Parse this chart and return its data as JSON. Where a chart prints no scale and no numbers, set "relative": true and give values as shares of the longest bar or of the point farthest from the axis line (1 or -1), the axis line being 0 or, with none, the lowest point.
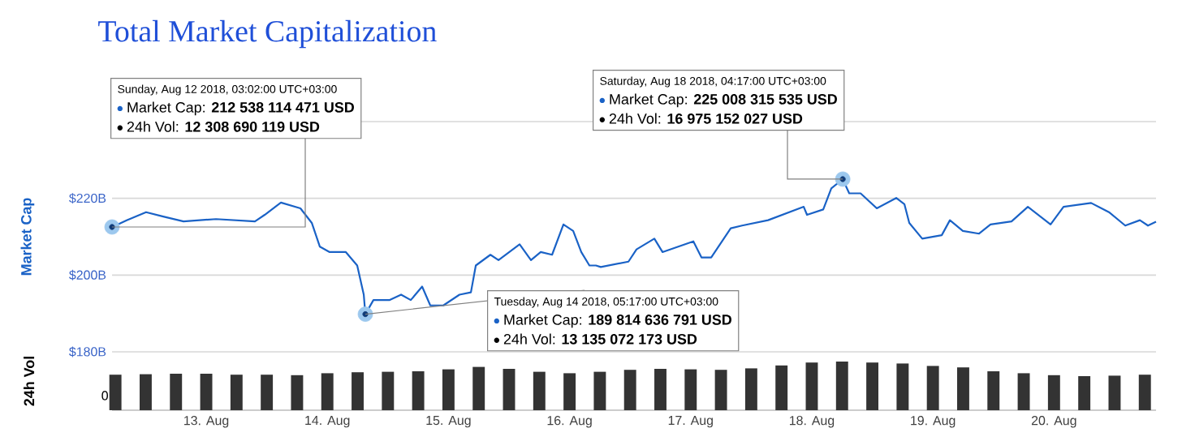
{
  "chart_data": [
    {
      "type": "line",
      "title": "Total Market Capitalization",
      "ylabel": "Market Cap",
      "color": "#1a62c6",
      "x": [
        "2018-08-12T05:20",
        "2018-08-12T08:14",
        "2018-08-12T12:05",
        "2018-08-12T15:19",
        "2018-08-12T19:30",
        "2018-08-13T01:56",
        "2018-08-13T09:39",
        "2018-08-13T11:35",
        "2018-08-13T14:48",
        "2018-08-13T18:40",
        "2018-08-13T20:55",
        "2018-08-13T22:31",
        "2018-08-14T00:27",
        "2018-08-14T03:40",
        "2018-08-14T05:55",
        "2018-08-14T07:13",
        "2018-08-14T07:32",
        "2018-08-14T09:08",
        "2018-08-14T12:22",
        "2018-08-14T14:37",
        "2018-08-14T16:32",
        "2018-08-14T18:47",
        "2018-08-14T20:24",
        "2018-08-14T22:59",
        "2018-08-15T02:11",
        "2018-08-15T04:27",
        "2018-08-15T05:25",
        "2018-08-15T08:19",
        "2018-08-15T09:55",
        "2018-08-15T14:06",
        "2018-08-15T16:21",
        "2018-08-15T18:17",
        "2018-08-15T20:32",
        "2018-08-15T22:47",
        "2018-08-16T00:43",
        "2018-08-16T02:19",
        "2018-08-16T03:56",
        "2018-08-16T05:13",
        "2018-08-16T06:11",
        "2018-08-16T11:40",
        "2018-08-16T13:16",
        "2018-08-16T16:48",
        "2018-08-16T18:25",
        "2018-08-17T00:32",
        "2018-08-17T02:08",
        "2018-08-17T04:04",
        "2018-08-17T07:56",
        "2018-08-17T10:11",
        "2018-08-17T15:20",
        "2018-08-17T22:24",
        "2018-08-17T23:03",
        "2018-08-18T02:16",
        "2018-08-18T03:52",
        "2018-08-18T06:08",
        "2018-08-18T07:25",
        "2018-08-18T09:40",
        "2018-08-18T12:53",
        "2018-08-18T16:44",
        "2018-08-18T18:21",
        "2018-08-18T19:19",
        "2018-08-18T21:53",
        "2018-08-19T01:45",
        "2018-08-19T03:22",
        "2018-08-19T05:56",
        "2018-08-19T09:09",
        "2018-08-19T11:25",
        "2018-08-19T15:35",
        "2018-08-19T18:49",
        "2018-08-19T23:19",
        "2018-08-20T01:53",
        "2018-08-20T07:21",
        "2018-08-20T10:53",
        "2018-08-20T14:07",
        "2018-08-20T17:01",
        "2018-08-20T18:37",
        "2018-08-20T20:13"
      ],
      "values": [
        212.5,
        214.3,
        216.4,
        215.3,
        214.0,
        214.6,
        214.0,
        215.7,
        218.9,
        217.4,
        213.6,
        207.4,
        206.0,
        206.0,
        202.5,
        194.9,
        189.8,
        193.5,
        193.5,
        194.9,
        193.5,
        197.0,
        192.1,
        192.1,
        194.9,
        195.5,
        202.5,
        205.3,
        203.9,
        208.0,
        203.9,
        206.0,
        205.3,
        213.2,
        211.5,
        206.0,
        202.5,
        202.5,
        202.1,
        203.5,
        206.7,
        209.5,
        206.0,
        208.8,
        204.6,
        204.6,
        212.2,
        212.9,
        214.3,
        217.8,
        215.7,
        217.1,
        222.6,
        225.0,
        221.3,
        221.3,
        217.4,
        220.1,
        218.5,
        213.6,
        209.5,
        210.4,
        214.3,
        211.5,
        210.8,
        213.2,
        214.0,
        217.8,
        213.2,
        217.8,
        218.8,
        216.4,
        212.9,
        214.3,
        212.9,
        213.9
      ],
      "xlim": [
        "2018-08-12T05:20",
        "2018-08-20T20:13"
      ],
      "ylim": [
        180,
        240
      ],
      "yticks": [
        {
          "value": 180,
          "label": "$180B"
        },
        {
          "value": 200,
          "label": "$200B"
        },
        {
          "value": 220,
          "label": "$220B"
        },
        {
          "value": 240,
          "label": null
        }
      ],
      "xticks": [
        "2018-08-13",
        "2018-08-14",
        "2018-08-15",
        "2018-08-16",
        "2018-08-17",
        "2018-08-18",
        "2018-08-19",
        "2018-08-20"
      ],
      "grid": "y",
      "tick_labels": "y",
      "annotations": [
        {
          "text": "Sunday, Aug 12 2018, 03:02:00 UTC+03:00",
          "x": "2018-08-12T05:20",
          "y": 212.538114471
        },
        "Market Cap: **212 538 114 471 USD**",
        "24h Vol: **12 308 690 119 USD**",
        {
          "text": "Saturday, Aug 18 2018, 04:17:00 UTC+03:00",
          "x": "2018-08-18T06:08",
          "y": 225.008315535
        },
        "Market Cap: **225 008 315 535 USD**",
        "24h Vol: **16 975 152 027 USD**",
        {
          "text": "Tuesday, Aug 14 2018, 05:17:00 UTC+03:00",
          "x": "2018-08-14T07:32",
          "y": 189.814636791
        },
        "Market Cap: **189 814 636 791 USD**",
        "24h Vol: **13 135 072 173 USD**"
      ]
    },
    {
      "type": "bar",
      "ylabel": "24h Vol",
      "color": "#333333",
      "x": [
        "2018-08-12T06:00",
        "2018-08-12T12:00",
        "2018-08-12T18:00",
        "2018-08-13T00:00",
        "2018-08-13T06:00",
        "2018-08-13T12:00",
        "2018-08-13T18:00",
        "2018-08-14T00:00",
        "2018-08-14T06:00",
        "2018-08-14T12:00",
        "2018-08-14T18:00",
        "2018-08-15T00:00",
        "2018-08-15T06:00",
        "2018-08-15T12:00",
        "2018-08-15T18:00",
        "2018-08-16T00:00",
        "2018-08-16T06:00",
        "2018-08-16T12:00",
        "2018-08-16T18:00",
        "2018-08-17T00:00",
        "2018-08-17T06:00",
        "2018-08-17T12:00",
        "2018-08-17T18:00",
        "2018-08-18T00:00",
        "2018-08-18T06:00",
        "2018-08-18T12:00",
        "2018-08-18T18:00",
        "2018-08-19T00:00",
        "2018-08-19T06:00",
        "2018-08-19T12:00",
        "2018-08-19T18:00",
        "2018-08-20T00:00",
        "2018-08-20T06:00",
        "2018-08-20T12:00",
        "2018-08-20T18:00"
      ],
      "values": [
        0.73,
        0.74,
        0.75,
        0.75,
        0.73,
        0.73,
        0.72,
        0.76,
        0.78,
        0.79,
        0.8,
        0.84,
        0.89,
        0.85,
        0.79,
        0.76,
        0.79,
        0.83,
        0.85,
        0.84,
        0.83,
        0.86,
        0.92,
        0.98,
        1,
        0.98,
        0.96,
        0.91,
        0.88,
        0.8,
        0.76,
        0.72,
        0.7,
        0.71,
        0.73
      ],
      "relative": true,
      "annotations": [
        "0"
      ],
      "xlim": [
        "2018-08-12T05:20",
        "2018-08-20T20:13"
      ],
      "xticks": [
        {
          "value": "2018-08-13",
          "label": "13. Aug"
        },
        {
          "value": "2018-08-14",
          "label": "14. Aug"
        },
        {
          "value": "2018-08-15",
          "label": "15. Aug"
        },
        {
          "value": "2018-08-16",
          "label": "16. Aug"
        },
        {
          "value": "2018-08-17",
          "label": "17. Aug"
        },
        {
          "value": "2018-08-18",
          "label": "18. Aug"
        },
        {
          "value": "2018-08-19",
          "label": "19. Aug"
        },
        {
          "value": "2018-08-20",
          "label": "20. Aug"
        }
      ]
    }
  ]
}
